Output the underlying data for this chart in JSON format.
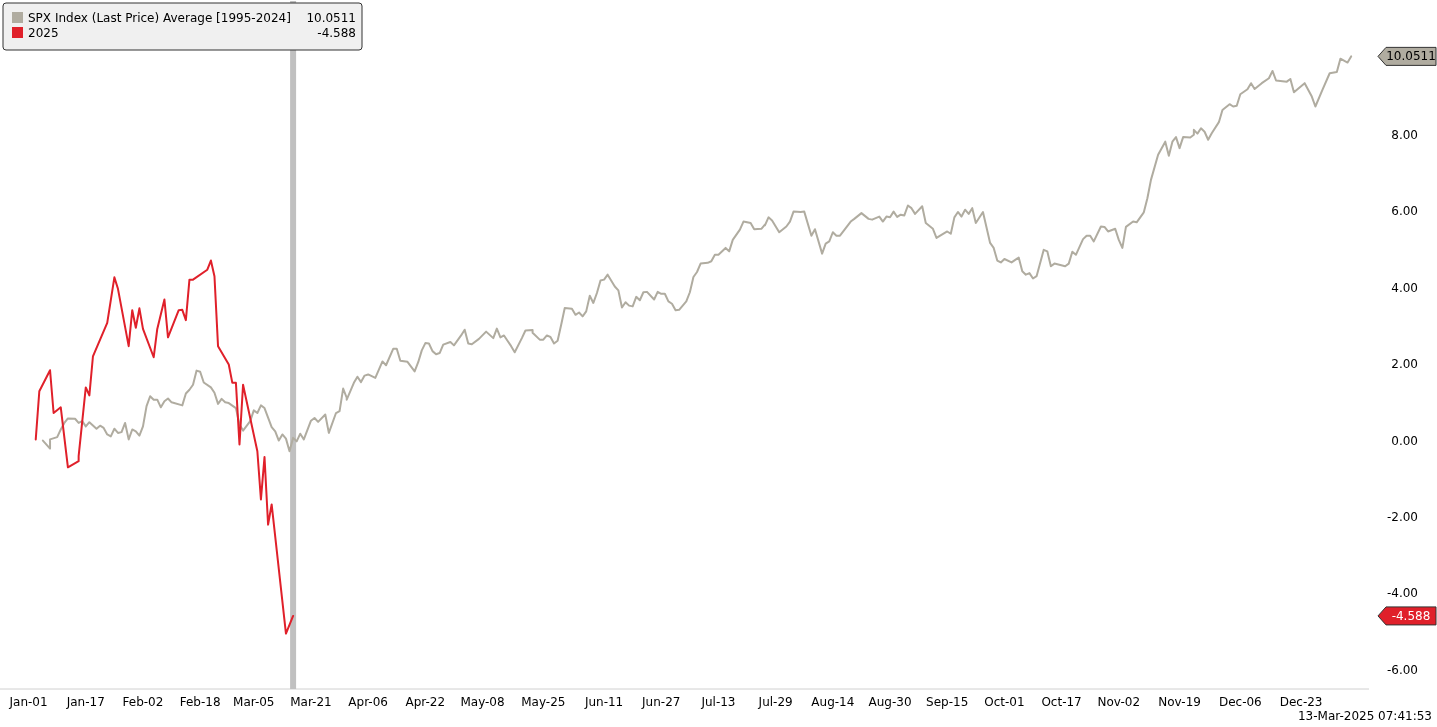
{
  "chart_data": {
    "type": "line",
    "legend": "top left",
    "grid": false,
    "marker": "none",
    "line_style": "solid",
    "xlim": [
      "2024-12-24",
      "2026-01-11"
    ],
    "ylim": [
      -6.5,
      11.5
    ],
    "xticks": [
      {
        "value": "2025-01-01",
        "label": "Jan-01"
      },
      {
        "value": "2025-01-17",
        "label": "Jan-17"
      },
      {
        "value": "2025-02-02",
        "label": "Feb-02"
      },
      {
        "value": "2025-02-18",
        "label": "Feb-18"
      },
      {
        "value": "2025-03-05",
        "label": "Mar-05"
      },
      {
        "value": "2025-03-21",
        "label": "Mar-21"
      },
      {
        "value": "2025-04-06",
        "label": "Apr-06"
      },
      {
        "value": "2025-04-22",
        "label": "Apr-22"
      },
      {
        "value": "2025-05-08",
        "label": "May-08"
      },
      {
        "value": "2025-05-25",
        "label": "May-25"
      },
      {
        "value": "2025-06-11",
        "label": "Jun-11"
      },
      {
        "value": "2025-06-27",
        "label": "Jun-27"
      },
      {
        "value": "2025-07-13",
        "label": "Jul-13"
      },
      {
        "value": "2025-07-29",
        "label": "Jul-29"
      },
      {
        "value": "2025-08-14",
        "label": "Aug-14"
      },
      {
        "value": "2025-08-30",
        "label": "Aug-30"
      },
      {
        "value": "2025-09-15",
        "label": "Sep-15"
      },
      {
        "value": "2025-10-01",
        "label": "Oct-01"
      },
      {
        "value": "2025-10-17",
        "label": "Oct-17"
      },
      {
        "value": "2025-11-02",
        "label": "Nov-02"
      },
      {
        "value": "2025-11-19",
        "label": "Nov-19"
      },
      {
        "value": "2025-12-06",
        "label": "Dec-06"
      },
      {
        "value": "2025-12-23",
        "label": "Dec-23"
      }
    ],
    "yticks": [
      {
        "value": -6,
        "label": "-6.00"
      },
      {
        "value": -4,
        "label": "-4.00"
      },
      {
        "value": -2,
        "label": "-2.00"
      },
      {
        "value": 0,
        "label": "0.00"
      },
      {
        "value": 2,
        "label": "2.00"
      },
      {
        "value": 4,
        "label": "4.00"
      },
      {
        "value": 6,
        "label": "6.00"
      },
      {
        "value": 8,
        "label": "8.00"
      }
    ],
    "ref_lines": [
      {
        "axis": "x",
        "value": "2025-03-16",
        "color": "#c0c0c0"
      }
    ],
    "series": [
      {
        "name": "SPX Index (Last Price) Average [1995-2024]",
        "color": "#b0aca0",
        "x": [
          "2025-01-05",
          "2025-01-07",
          "2025-01-07",
          "2025-01-09",
          "2025-01-10",
          "2025-01-11",
          "2025-01-12",
          "2025-01-14",
          "2025-01-15",
          "2025-01-16",
          "2025-01-17",
          "2025-01-18",
          "2025-01-20",
          "2025-01-21",
          "2025-01-22",
          "2025-01-23",
          "2025-01-24",
          "2025-01-25",
          "2025-01-26",
          "2025-01-27",
          "2025-01-28",
          "2025-01-29",
          "2025-01-30",
          "2025-01-31",
          "2025-02-01",
          "2025-02-02",
          "2025-02-03",
          "2025-02-04",
          "2025-02-05",
          "2025-02-06",
          "2025-02-07",
          "2025-02-08",
          "2025-02-09",
          "2025-02-10",
          "2025-02-13",
          "2025-02-14",
          "2025-02-15",
          "2025-02-16",
          "2025-02-17",
          "2025-02-18",
          "2025-02-19",
          "2025-02-21",
          "2025-02-22",
          "2025-02-23",
          "2025-02-24",
          "2025-02-25",
          "2025-02-26",
          "2025-02-28",
          "2025-03-01",
          "2025-03-02",
          "2025-03-04",
          "2025-03-05",
          "2025-03-06",
          "2025-03-07",
          "2025-03-08",
          "2025-03-10",
          "2025-03-11",
          "2025-03-12",
          "2025-03-13",
          "2025-03-14",
          "2025-03-15",
          "2025-03-16",
          "2025-03-17",
          "2025-03-18",
          "2025-03-19",
          "2025-03-21",
          "2025-03-22",
          "2025-03-23",
          "2025-03-25",
          "2025-03-26",
          "2025-03-28",
          "2025-03-29",
          "2025-03-30",
          "2025-03-31",
          "2025-03-31",
          "2025-04-02",
          "2025-04-03",
          "2025-04-04",
          "2025-04-05",
          "2025-04-06",
          "2025-04-08",
          "2025-04-10",
          "2025-04-11",
          "2025-04-13",
          "2025-04-14",
          "2025-04-15",
          "2025-04-17",
          "2025-04-19",
          "2025-04-20",
          "2025-04-21",
          "2025-04-22",
          "2025-04-23",
          "2025-04-24",
          "2025-04-25",
          "2025-04-26",
          "2025-04-27",
          "2025-04-29",
          "2025-04-30",
          "2025-05-02",
          "2025-05-03",
          "2025-05-04",
          "2025-05-05",
          "2025-05-07",
          "2025-05-09",
          "2025-05-11",
          "2025-05-12",
          "2025-05-13",
          "2025-05-14",
          "2025-05-16",
          "2025-05-17",
          "2025-05-19",
          "2025-05-20",
          "2025-05-22",
          "2025-05-22",
          "2025-05-24",
          "2025-05-25",
          "2025-05-26",
          "2025-05-27",
          "2025-05-28",
          "2025-05-29",
          "2025-05-30",
          "2025-05-31",
          "2025-06-02",
          "2025-06-03",
          "2025-06-04",
          "2025-06-05",
          "2025-06-06",
          "2025-06-07",
          "2025-06-08",
          "2025-06-09",
          "2025-06-10",
          "2025-06-11",
          "2025-06-12",
          "2025-06-14",
          "2025-06-15",
          "2025-06-16",
          "2025-06-17",
          "2025-06-18",
          "2025-06-19",
          "2025-06-20",
          "2025-06-21",
          "2025-06-22",
          "2025-06-23",
          "2025-06-25",
          "2025-06-26",
          "2025-06-27",
          "2025-06-28",
          "2025-06-29",
          "2025-06-30",
          "2025-07-01",
          "2025-07-02",
          "2025-07-04",
          "2025-07-05",
          "2025-07-06",
          "2025-07-07",
          "2025-07-08",
          "2025-07-10",
          "2025-07-11",
          "2025-07-12",
          "2025-07-13",
          "2025-07-15",
          "2025-07-16",
          "2025-07-17",
          "2025-07-19",
          "2025-07-20",
          "2025-07-22",
          "2025-07-23",
          "2025-07-25",
          "2025-07-26",
          "2025-07-26",
          "2025-07-27",
          "2025-07-28",
          "2025-07-30",
          "2025-08-01",
          "2025-08-02",
          "2025-08-03",
          "2025-08-05",
          "2025-08-06",
          "2025-08-08",
          "2025-08-09",
          "2025-08-11",
          "2025-08-12",
          "2025-08-13",
          "2025-08-14",
          "2025-08-15",
          "2025-08-16",
          "2025-08-19",
          "2025-08-20",
          "2025-08-22",
          "2025-08-24",
          "2025-08-25",
          "2025-08-27",
          "2025-08-28",
          "2025-08-29",
          "2025-08-30",
          "2025-08-31",
          "2025-09-01",
          "2025-09-02",
          "2025-09-03",
          "2025-09-04",
          "2025-09-05",
          "2025-09-06",
          "2025-09-08",
          "2025-09-09",
          "2025-09-11",
          "2025-09-12",
          "2025-09-15",
          "2025-09-16",
          "2025-09-17",
          "2025-09-18",
          "2025-09-19",
          "2025-09-20",
          "2025-09-21",
          "2025-09-22",
          "2025-09-23",
          "2025-09-25",
          "2025-09-27",
          "2025-09-28",
          "2025-09-29",
          "2025-09-30",
          "2025-10-01",
          "2025-10-03",
          "2025-10-03",
          "2025-10-05",
          "2025-10-06",
          "2025-10-07",
          "2025-10-08",
          "2025-10-09",
          "2025-10-10",
          "2025-10-12",
          "2025-10-13",
          "2025-10-14",
          "2025-10-15",
          "2025-10-18",
          "2025-10-19",
          "2025-10-20",
          "2025-10-21",
          "2025-10-23",
          "2025-10-24",
          "2025-10-25",
          "2025-10-26",
          "2025-10-28",
          "2025-10-29",
          "2025-10-30",
          "2025-11-01",
          "2025-11-02",
          "2025-11-03",
          "2025-11-04",
          "2025-11-06",
          "2025-11-07",
          "2025-11-09",
          "2025-11-10",
          "2025-11-11",
          "2025-11-13",
          "2025-11-14",
          "2025-11-15",
          "2025-11-16",
          "2025-11-17",
          "2025-11-18",
          "2025-11-19",
          "2025-11-20",
          "2025-11-22",
          "2025-11-23",
          "2025-11-23",
          "2025-11-24",
          "2025-11-25",
          "2025-11-26",
          "2025-11-27",
          "2025-11-28",
          "2025-11-30",
          "2025-12-01",
          "2025-12-03",
          "2025-12-04",
          "2025-12-05",
          "2025-12-06",
          "2025-12-08",
          "2025-12-09",
          "2025-12-10",
          "2025-12-12",
          "2025-12-14",
          "2025-12-15",
          "2025-12-16",
          "2025-12-19",
          "2025-12-20",
          "2025-12-21",
          "2025-12-24",
          "2025-12-26",
          "2025-12-27",
          "2025-12-29",
          "2025-12-31",
          "2026-01-02",
          "2026-01-03",
          "2026-01-05",
          "2026-01-06"
        ],
        "values": [
          0.0,
          -0.21,
          0.03,
          0.09,
          0.29,
          0.46,
          0.58,
          0.57,
          0.46,
          0.51,
          0.37,
          0.48,
          0.31,
          0.39,
          0.33,
          0.16,
          0.11,
          0.31,
          0.2,
          0.22,
          0.46,
          0.03,
          0.29,
          0.24,
          0.13,
          0.37,
          0.9,
          1.16,
          1.07,
          1.07,
          0.87,
          1.03,
          1.1,
          1.0,
          0.92,
          1.23,
          1.33,
          1.46,
          1.83,
          1.8,
          1.52,
          1.39,
          1.25,
          0.96,
          1.09,
          1.0,
          0.98,
          0.85,
          0.42,
          0.26,
          0.51,
          0.79,
          0.72,
          0.92,
          0.85,
          0.35,
          0.24,
          0.0,
          0.16,
          0.05,
          -0.28,
          0.07,
          -0.02,
          0.18,
          0.03,
          0.52,
          0.59,
          0.49,
          0.68,
          0.2,
          0.72,
          0.77,
          1.36,
          1.12,
          1.07,
          1.51,
          1.67,
          1.53,
          1.7,
          1.73,
          1.64,
          2.07,
          1.97,
          2.4,
          2.4,
          2.09,
          2.06,
          1.81,
          2.05,
          2.36,
          2.55,
          2.54,
          2.34,
          2.26,
          2.29,
          2.51,
          2.58,
          2.49,
          2.75,
          2.9,
          2.54,
          2.52,
          2.66,
          2.85,
          2.68,
          2.93,
          2.7,
          2.75,
          2.47,
          2.31,
          2.68,
          2.88,
          2.89,
          2.82,
          2.64,
          2.64,
          2.75,
          2.71,
          2.54,
          2.61,
          3.03,
          3.47,
          3.45,
          3.29,
          3.35,
          3.25,
          3.38,
          3.79,
          3.6,
          3.86,
          4.19,
          4.21,
          4.34,
          4.03,
          3.93,
          3.48,
          3.62,
          3.53,
          3.51,
          3.76,
          3.67,
          3.88,
          3.89,
          3.69,
          3.89,
          3.84,
          3.84,
          3.64,
          3.58,
          3.41,
          3.42,
          3.64,
          3.88,
          4.28,
          4.41,
          4.63,
          4.65,
          4.69,
          4.86,
          4.86,
          5.04,
          4.95,
          5.25,
          5.52,
          5.73,
          5.69,
          5.53,
          5.54,
          5.65,
          5.63,
          5.84,
          5.76,
          5.45,
          5.6,
          5.73,
          5.99,
          5.98,
          5.99,
          5.36,
          5.53,
          4.89,
          5.15,
          5.21,
          5.45,
          5.36,
          5.36,
          5.73,
          5.8,
          5.95,
          5.8,
          5.78,
          5.86,
          5.73,
          5.86,
          5.84,
          5.99,
          5.85,
          5.91,
          5.89,
          6.15,
          6.08,
          5.93,
          6.13,
          5.69,
          5.54,
          5.3,
          5.47,
          5.41,
          5.84,
          5.98,
          5.86,
          6.04,
          5.93,
          6.08,
          5.69,
          5.98,
          5.17,
          5.04,
          4.71,
          4.66,
          4.75,
          4.66,
          4.66,
          4.79,
          4.43,
          4.34,
          4.38,
          4.24,
          4.3,
          4.99,
          4.95,
          4.56,
          4.63,
          4.56,
          4.63,
          4.94,
          4.86,
          5.27,
          5.36,
          5.36,
          5.21,
          5.6,
          5.59,
          5.47,
          5.54,
          5.25,
          5.04,
          5.59,
          5.73,
          5.71,
          5.97,
          6.34,
          6.82,
          7.48,
          7.65,
          7.82,
          7.45,
          7.82,
          7.94,
          7.65,
          7.94,
          7.93,
          8.0,
          8.13,
          8.03,
          8.17,
          8.08,
          7.87,
          8.04,
          8.33,
          8.65,
          8.8,
          8.74,
          8.76,
          9.06,
          9.19,
          9.35,
          9.2,
          9.35,
          9.48,
          9.67,
          9.42,
          9.39,
          9.46,
          9.11,
          9.35,
          9.0,
          8.74,
          9.18,
          9.61,
          9.64,
          9.99,
          9.89,
          10.0511
        ]
      },
      {
        "name": "2025",
        "color": "#e0202a",
        "x": [
          "2025-01-03",
          "2025-01-04",
          "2025-01-07",
          "2025-01-08",
          "2025-01-10",
          "2025-01-12",
          "2025-01-15",
          "2025-01-15",
          "2025-01-17",
          "2025-01-18",
          "2025-01-19",
          "2025-01-23",
          "2025-01-25",
          "2025-01-26",
          "2025-01-29",
          "2025-01-30",
          "2025-01-31",
          "2025-02-01",
          "2025-02-02",
          "2025-02-05",
          "2025-02-06",
          "2025-02-08",
          "2025-02-09",
          "2025-02-12",
          "2025-02-13",
          "2025-02-14",
          "2025-02-15",
          "2025-02-16",
          "2025-02-20",
          "2025-02-21",
          "2025-02-22",
          "2025-02-23",
          "2025-02-26",
          "2025-02-27",
          "2025-02-28",
          "2025-03-01",
          "2025-03-02",
          "2025-03-06",
          "2025-03-07",
          "2025-03-08",
          "2025-03-09",
          "2025-03-10",
          "2025-03-14",
          "2025-03-16"
        ],
        "values": [
          0.03,
          1.29,
          1.84,
          0.72,
          0.87,
          -0.7,
          -0.54,
          -0.41,
          1.39,
          1.18,
          2.2,
          3.08,
          4.27,
          3.97,
          2.47,
          3.41,
          2.95,
          3.46,
          2.92,
          2.18,
          2.92,
          3.69,
          2.7,
          3.41,
          3.42,
          3.15,
          4.21,
          4.21,
          4.47,
          4.71,
          4.3,
          2.47,
          1.99,
          1.51,
          1.51,
          -0.1,
          1.46,
          -0.28,
          -1.54,
          -0.43,
          -2.2,
          -1.67,
          -5.05,
          -4.588
        ]
      }
    ],
    "annotations": [
      "10.0511",
      "-4.588",
      "13-Mar-2025 07:41:53"
    ]
  }
}
